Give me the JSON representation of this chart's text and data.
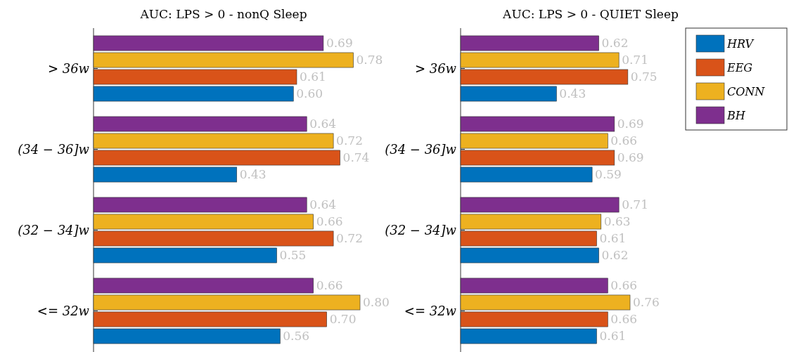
{
  "chart_data": [
    {
      "type": "bar",
      "orientation": "horizontal",
      "title": "AUC: LPS > 0 - nonQ Sleep",
      "categories": [
        "> 36w",
        "(34 − 36]w",
        "(32 − 34]w",
        "<= 32w"
      ],
      "series": [
        {
          "color": "#0072bd",
          "values": [
            0.6,
            0.43,
            0.55,
            0.56
          ],
          "value_labels": [
            "0.60",
            "0.43",
            "0.55",
            "0.56"
          ]
        },
        {
          "color": "#d95319",
          "values": [
            0.61,
            0.74,
            0.72,
            0.7
          ],
          "value_labels": [
            "0.61",
            "0.74",
            "0.72",
            "0.70"
          ]
        },
        {
          "color": "#edb120",
          "values": [
            0.78,
            0.72,
            0.66,
            0.8
          ],
          "value_labels": [
            "0.78",
            "0.72",
            "0.66",
            "0.80"
          ]
        },
        {
          "color": "#7e2f8e",
          "values": [
            0.69,
            0.64,
            0.64,
            0.66
          ],
          "value_labels": [
            "0.69",
            "0.64",
            "0.64",
            "0.66"
          ]
        }
      ]
    },
    {
      "type": "bar",
      "orientation": "horizontal",
      "title": "AUC: LPS > 0 - QUIET Sleep",
      "categories": [
        "> 36w",
        "(34 − 36]w",
        "(32 − 34]w",
        "<= 32w"
      ],
      "legend": "top right",
      "series": [
        {
          "name": "HRV",
          "color": "#0072bd",
          "values": [
            0.43,
            0.59,
            0.62,
            0.61
          ],
          "value_labels": [
            "0.43",
            "0.59",
            "0.62",
            "0.61"
          ]
        },
        {
          "name": "EEG",
          "color": "#d95319",
          "values": [
            0.75,
            0.69,
            0.61,
            0.66
          ],
          "value_labels": [
            "0.75",
            "0.69",
            "0.61",
            "0.66"
          ]
        },
        {
          "name": "CONN",
          "color": "#edb120",
          "values": [
            0.71,
            0.66,
            0.63,
            0.76
          ],
          "value_labels": [
            "0.71",
            "0.66",
            "0.63",
            "0.76"
          ]
        },
        {
          "name": "BH",
          "color": "#7e2f8e",
          "values": [
            0.62,
            0.69,
            0.71,
            0.66
          ],
          "value_labels": [
            "0.62",
            "0.69",
            "0.71",
            "0.66"
          ]
        }
      ]
    }
  ]
}
